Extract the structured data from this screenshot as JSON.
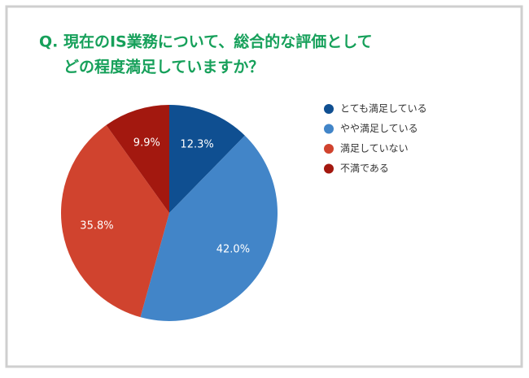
{
  "chart_data": {
    "type": "pie",
    "title": [
      "Q. 現在のIS業務について、総合的な評価として",
      "どの程度満足していますか？"
    ],
    "categories": [
      "とても満足している",
      "やや満足している",
      "満足していない",
      "不満である"
    ],
    "values": [
      12.3,
      42.0,
      35.8,
      9.9
    ],
    "value_labels": [
      "12.3%",
      "42.0%",
      "35.8%",
      "9.9%"
    ],
    "colors": [
      "#0f4f91",
      "#4285c8",
      "#d0432e",
      "#a3180f"
    ],
    "legend": "right"
  }
}
